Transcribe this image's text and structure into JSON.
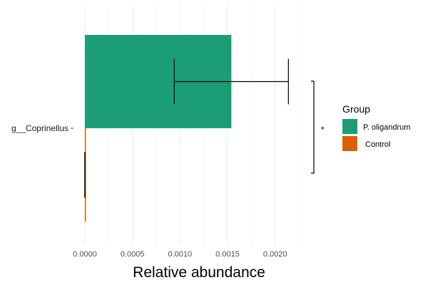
{
  "chart_data": {
    "type": "bar",
    "orientation": "horizontal",
    "categories": [
      "g__Coprinellus"
    ],
    "series": [
      {
        "name": "P. oligandrum",
        "values": [
          0.00154
        ],
        "error": [
          0.0006
        ],
        "color": "#1b9e77"
      },
      {
        "name": "Control",
        "values": [
          0.0
        ],
        "error": [
          0.0
        ],
        "color": "#d95f02"
      }
    ],
    "xlabel": "Relative abundance",
    "ylabel": "",
    "xlim": [
      0,
      0.00225
    ],
    "x_ticks": [
      "0.0000",
      "0.0005",
      "0.0010",
      "0.0015",
      "0.0020"
    ],
    "x_tick_values": [
      0,
      0.0005,
      0.001,
      0.0015,
      0.002
    ],
    "grid": "vertical",
    "legend": {
      "title": "Group",
      "position": "right"
    },
    "significance": {
      "label": "*"
    }
  }
}
